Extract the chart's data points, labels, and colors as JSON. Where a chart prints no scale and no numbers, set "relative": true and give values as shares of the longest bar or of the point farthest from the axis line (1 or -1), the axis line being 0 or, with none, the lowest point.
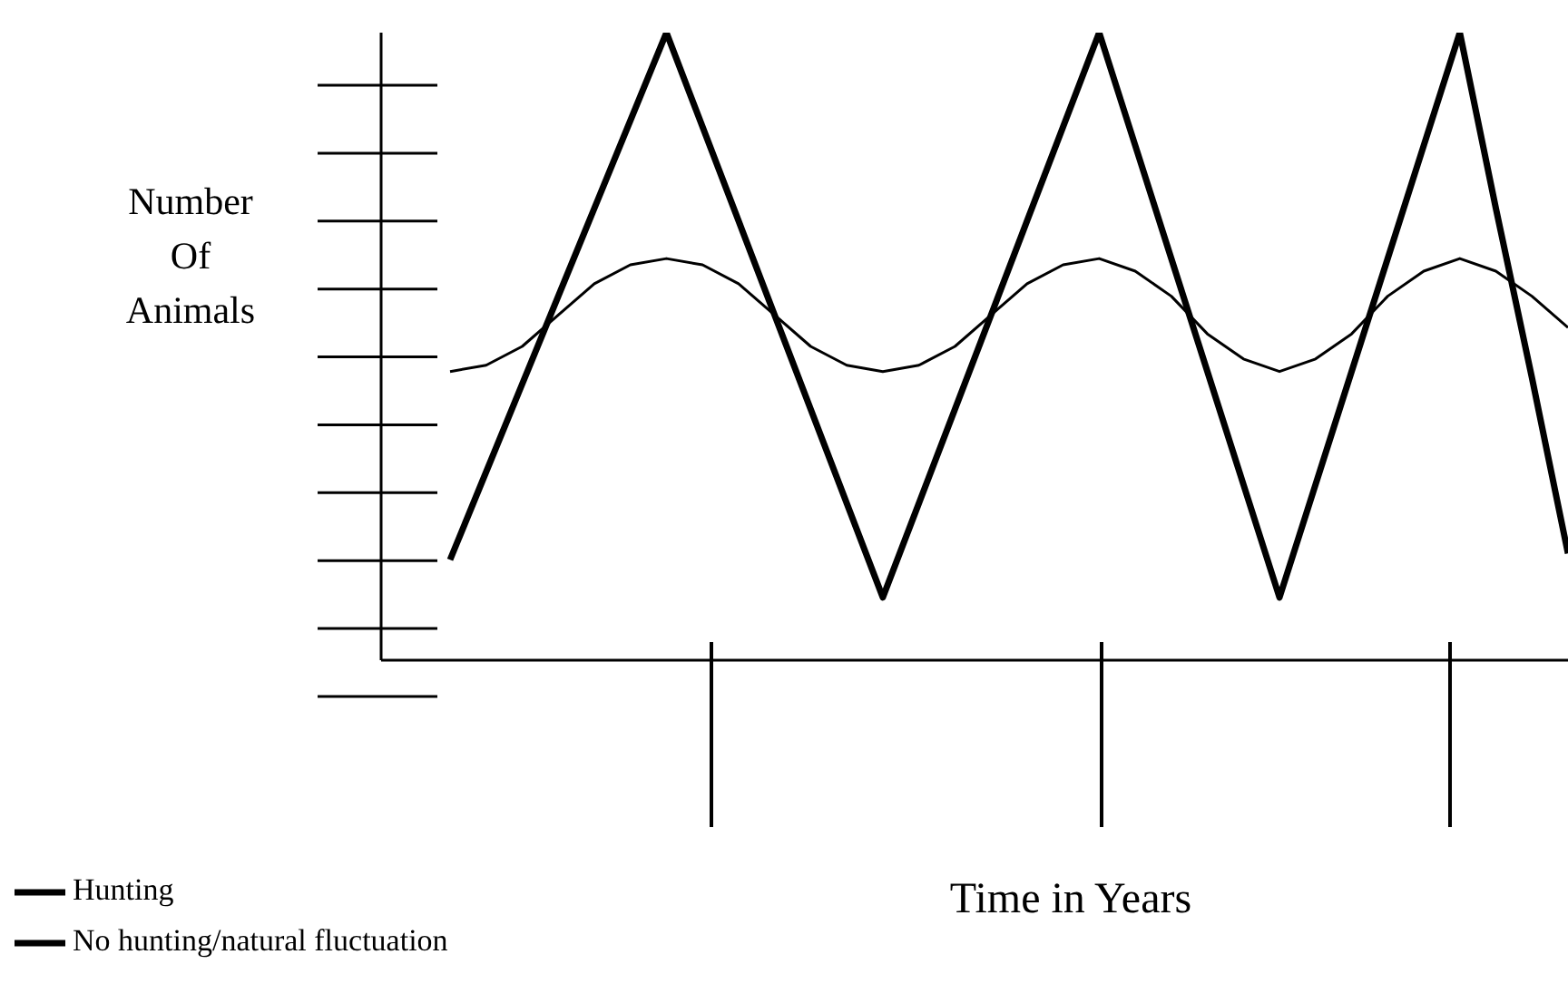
{
  "chart_data": {
    "type": "line",
    "relative": true,
    "xlabel": "Time in Years",
    "ylabel": "Number Of Animals",
    "categories": [
      null,
      null,
      null,
      null,
      null,
      null,
      null,
      null,
      null,
      null,
      null,
      null,
      null,
      null,
      null,
      null,
      null,
      null,
      null,
      null,
      null,
      null,
      null,
      null,
      null,
      null,
      null,
      null,
      null,
      null,
      null,
      null
    ],
    "series": [
      {
        "name": "Hunting",
        "color": "#000000",
        "values": [
          0.16,
          0.3,
          0.44,
          0.58,
          0.72,
          0.86,
          1,
          0.85,
          0.7,
          0.55,
          0.4,
          0.25,
          0.1,
          0.25,
          0.4,
          0.55,
          0.7,
          0.85,
          1,
          0.82,
          0.64,
          0.46,
          0.28,
          0.1,
          0.28,
          0.46,
          0.64,
          0.82,
          1,
          0.72,
          0.45,
          0.17
        ]
      },
      {
        "name": "No hunting/natural fluctuation",
        "color": "#000000",
        "values": [
          0.46,
          0.47,
          0.5,
          0.55,
          0.6,
          0.63,
          0.64,
          0.63,
          0.6,
          0.55,
          0.5,
          0.47,
          0.46,
          0.47,
          0.5,
          0.55,
          0.6,
          0.63,
          0.64,
          0.62,
          0.58,
          0.52,
          0.48,
          0.46,
          0.48,
          0.52,
          0.58,
          0.62,
          0.64,
          0.62,
          0.58,
          0.53
        ]
      }
    ],
    "legend": "bottom left",
    "grid": false,
    "marker": "none",
    "line_style": "solid"
  }
}
